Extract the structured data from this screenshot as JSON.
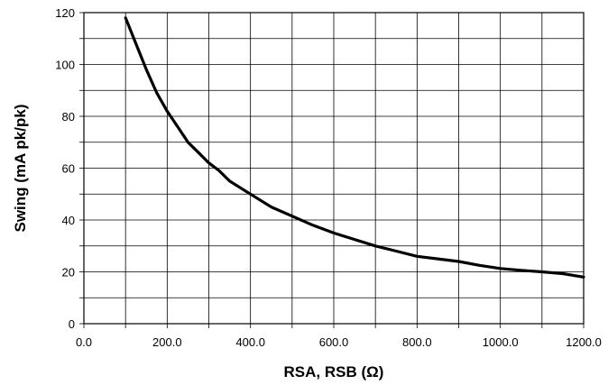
{
  "chart_data": {
    "type": "line",
    "xlabel": "RSA, RSB (Ω)",
    "ylabel": "Swing (mA pk/pk)",
    "xlim": [
      0,
      1200
    ],
    "ylim": [
      0,
      120
    ],
    "x_ticks": [
      0,
      200,
      400,
      600,
      800,
      1000,
      1200
    ],
    "x_tick_labels": [
      "0.0",
      "200.0",
      "400.0",
      "600.0",
      "800.0",
      "1000.0",
      "1200.0"
    ],
    "x_minor_gridlines": [
      100,
      300,
      500,
      700,
      900,
      1100
    ],
    "y_ticks": [
      0,
      20,
      40,
      60,
      80,
      100,
      120
    ],
    "y_tick_labels": [
      "0",
      "20",
      "40",
      "60",
      "80",
      "100",
      "120"
    ],
    "y_minor_gridlines": [
      10,
      30,
      50,
      70,
      90,
      110
    ],
    "grid": true,
    "series": [
      {
        "x": [
          100,
          125,
          150,
          175,
          200,
          225,
          250,
          275,
          300,
          325,
          350,
          400,
          450,
          500,
          550,
          600,
          650,
          700,
          750,
          800,
          850,
          900,
          950,
          1000,
          1050,
          1100,
          1150,
          1200
        ],
        "values": [
          118,
          108,
          98,
          89,
          82,
          76,
          70,
          66,
          62,
          59,
          55,
          50,
          45,
          41.5,
          38,
          35,
          32.5,
          30,
          28,
          26,
          25,
          24,
          22.5,
          21.3,
          20.6,
          20,
          19.3,
          18
        ]
      }
    ]
  }
}
